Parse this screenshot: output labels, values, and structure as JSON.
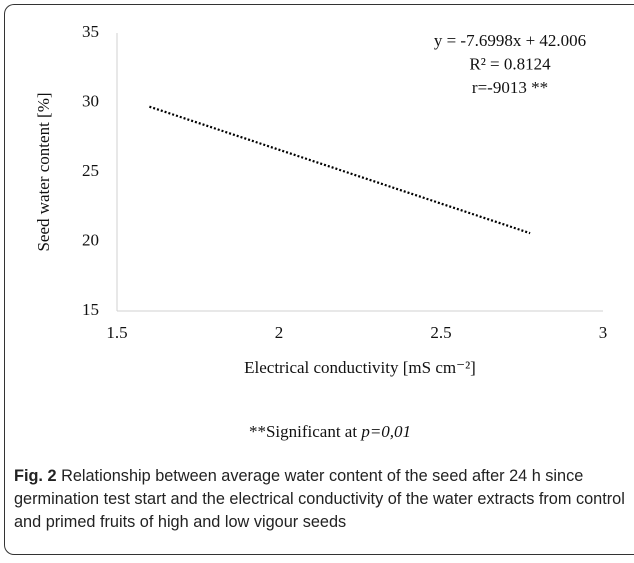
{
  "chart_data": {
    "type": "line",
    "x": [
      1.6,
      2.775
    ],
    "series": [
      {
        "name": null,
        "color": "#000000",
        "values": [
          29.7,
          20.6
        ],
        "dash": "dotted"
      }
    ],
    "xlim": [
      1.5,
      3
    ],
    "xticks": [
      1.5,
      2,
      2.5,
      3
    ],
    "ylim": [
      15,
      35
    ],
    "yticks": [
      15,
      20,
      25,
      30,
      35
    ],
    "xlabel": "Electrical conductivity [mS cm⁻²]",
    "ylabel": "Seed water content [%]",
    "annotations": [
      "y = -7.6998x + 42.006",
      "R² = 0.8124",
      "r=-9013 **"
    ],
    "grid": false
  },
  "note": {
    "text": "**Significant at ",
    "italic": "p=0,01"
  },
  "caption": {
    "label": "Fig. 2",
    "text": "Relationship between average water content of the seed after 24 h since germination test start and the electrical conductivity of the water extracts from control and primed fruits of high and low vigour seeds"
  }
}
